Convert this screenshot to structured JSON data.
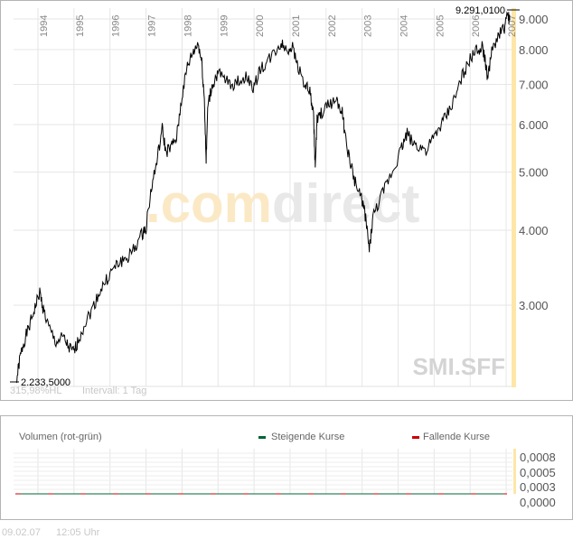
{
  "chart_data": [
    {
      "type": "line",
      "title": "SMI.SFF",
      "scale": "log",
      "x_ticks": [
        "1994",
        "1995",
        "1996",
        "1997",
        "1998",
        "1999",
        "2000",
        "2001",
        "2002",
        "2003",
        "2004",
        "2005",
        "2006",
        "2007"
      ],
      "y_ticks": [
        9000,
        8000,
        7000,
        6000,
        5000,
        4000,
        3000
      ],
      "y_tick_labels": [
        "9.000",
        "8.000",
        "7.000",
        "6.000",
        "5.000",
        "4.000",
        "3.000"
      ],
      "ylim": [
        2150,
        9400
      ],
      "xlim": [
        1993.35,
        2007.2
      ],
      "high_label": "9.291,0100",
      "low_label": "2.233,5000",
      "range_label": "315,98%HL",
      "interval_label": "Intervall: 1 Tag",
      "watermark_com": ".com",
      "watermark_direct": "direct",
      "x": [
        1993.4,
        1993.5,
        1993.6,
        1993.75,
        1993.9,
        1994.05,
        1994.15,
        1994.3,
        1994.5,
        1994.7,
        1994.85,
        1995.0,
        1995.1,
        1995.3,
        1995.5,
        1995.7,
        1995.9,
        1996.1,
        1996.3,
        1996.5,
        1996.7,
        1996.9,
        1997.0,
        1997.15,
        1997.3,
        1997.45,
        1997.55,
        1997.7,
        1997.85,
        1998.0,
        1998.15,
        1998.3,
        1998.45,
        1998.55,
        1998.62,
        1998.67,
        1998.72,
        1998.85,
        1999.0,
        1999.2,
        1999.4,
        1999.6,
        1999.8,
        2000.0,
        2000.15,
        2000.35,
        2000.55,
        2000.75,
        2000.9,
        2001.05,
        2001.2,
        2001.4,
        2001.55,
        2001.65,
        2001.7,
        2001.75,
        2001.9,
        2002.1,
        2002.3,
        2002.45,
        2002.55,
        2002.7,
        2002.85,
        2003.0,
        2003.1,
        2003.2,
        2003.3,
        2003.5,
        2003.7,
        2003.9,
        2004.1,
        2004.25,
        2004.4,
        2004.6,
        2004.8,
        2005.0,
        2005.2,
        2005.4,
        2005.6,
        2005.8,
        2006.0,
        2006.2,
        2006.35,
        2006.42,
        2006.48,
        2006.6,
        2006.8,
        2006.95,
        2007.05,
        2007.1
      ],
      "values": [
        2233,
        2450,
        2600,
        2750,
        2950,
        3150,
        2950,
        2750,
        2600,
        2650,
        2550,
        2500,
        2600,
        2800,
        2950,
        3150,
        3300,
        3450,
        3550,
        3600,
        3750,
        3950,
        4050,
        4700,
        5200,
        5900,
        5400,
        5500,
        5700,
        6700,
        7500,
        7900,
        8200,
        7600,
        6600,
        5200,
        6500,
        7000,
        7300,
        7100,
        7000,
        7100,
        7200,
        6900,
        7400,
        7600,
        7900,
        8200,
        8000,
        8100,
        7600,
        7000,
        6800,
        6200,
        5100,
        6100,
        6300,
        6500,
        6600,
        6300,
        5600,
        5100,
        4700,
        4500,
        4200,
        3700,
        4200,
        4500,
        4800,
        5100,
        5500,
        5800,
        5600,
        5500,
        5450,
        5700,
        6000,
        6300,
        6700,
        7300,
        7700,
        8000,
        8100,
        7600,
        7200,
        7900,
        8500,
        8700,
        9100,
        8950
      ]
    },
    {
      "type": "bar",
      "title": "Volumen (rot-grün)",
      "legend": [
        {
          "label": "Steigende Kurse",
          "color": "#006633"
        },
        {
          "label": "Fallende Kurse",
          "color": "#cc0000"
        }
      ],
      "y_tick_labels": [
        "0,0008",
        "0,0005",
        "0,0003",
        "0,0000"
      ],
      "ylim": [
        0,
        0.001
      ],
      "values": []
    }
  ],
  "footer": {
    "date": "09.02.07",
    "time": "12:05 Uhr"
  }
}
